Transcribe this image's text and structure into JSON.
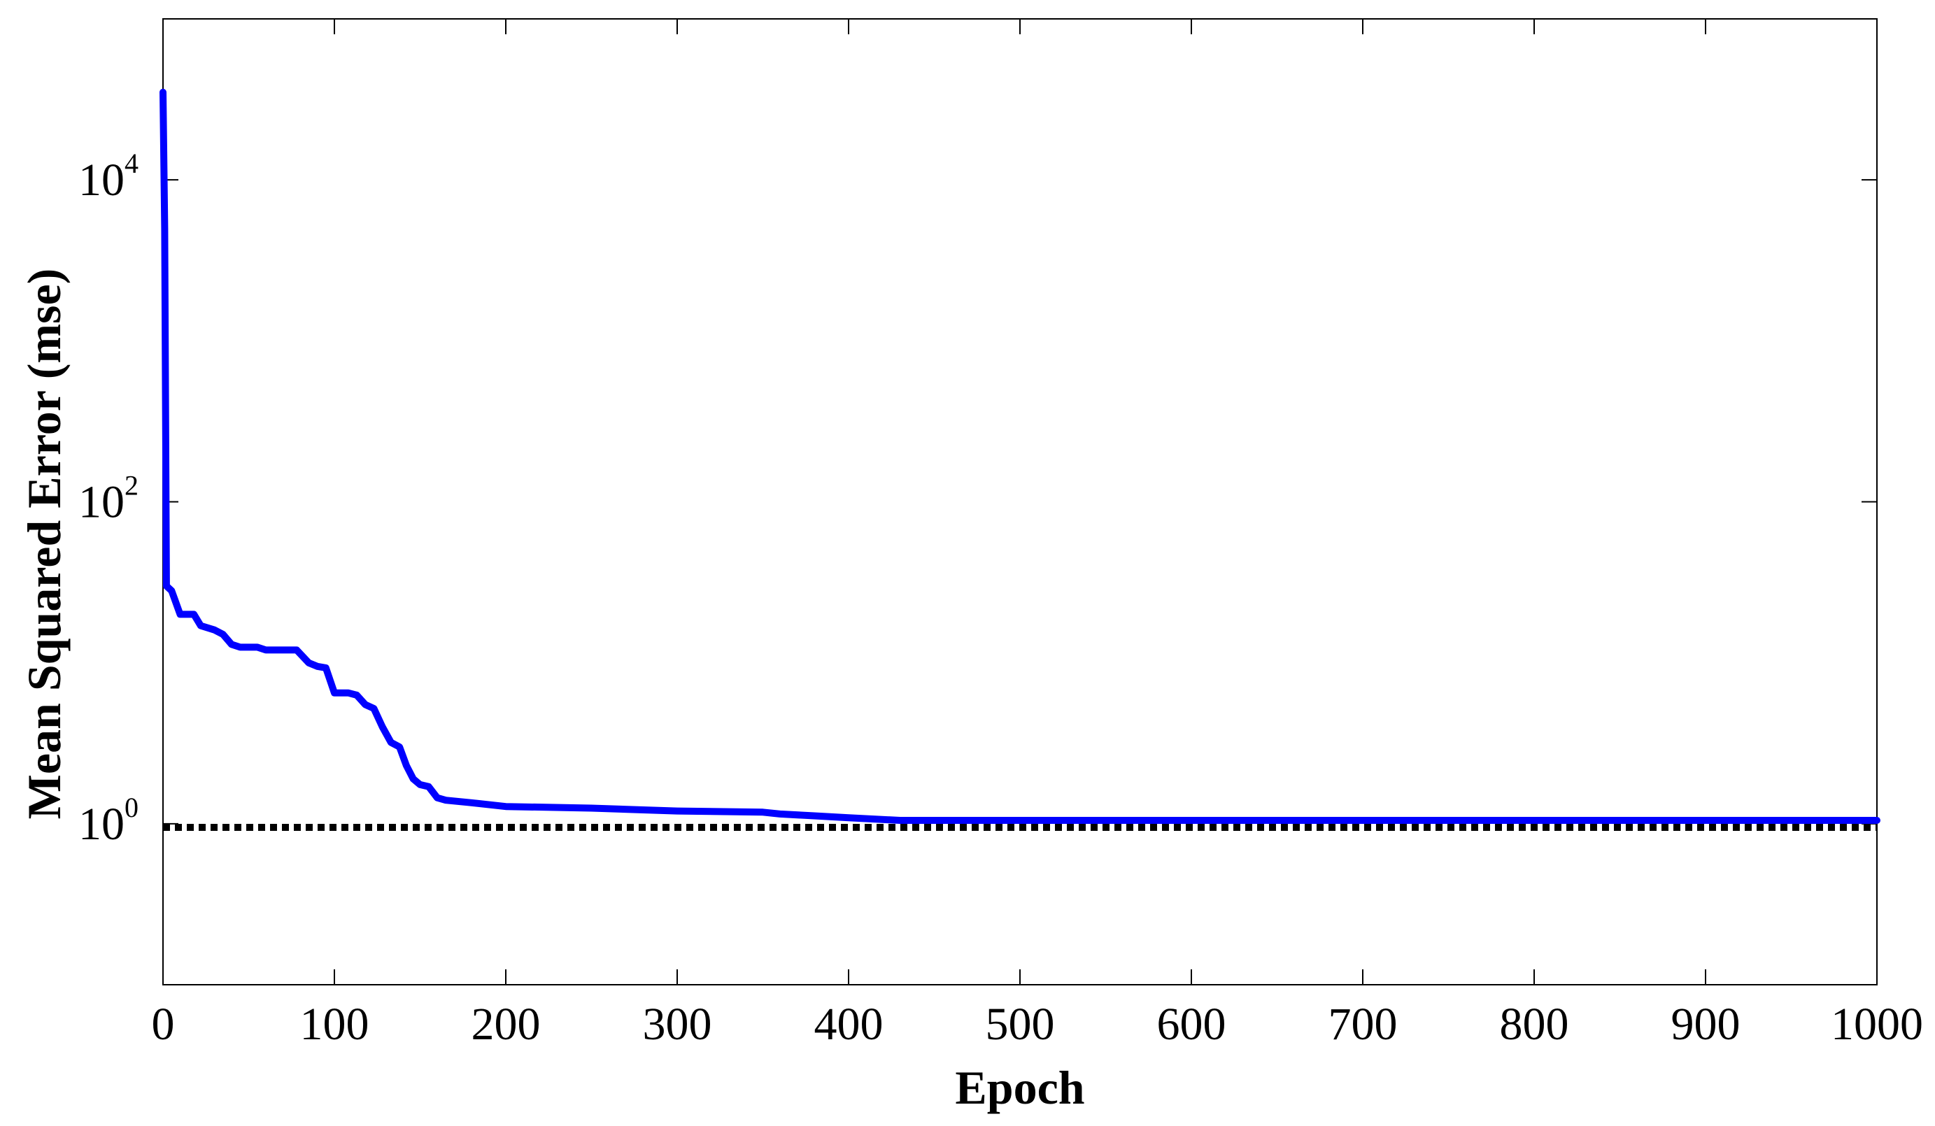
{
  "chart_data": {
    "type": "line",
    "title": "",
    "xlabel": "Epoch",
    "ylabel": "Mean Squared Error  (mse)",
    "xlim": [
      0,
      1000
    ],
    "ylim": [
      0.1,
      100000
    ],
    "yscale": "log",
    "x_ticks": [
      0,
      100,
      200,
      300,
      400,
      500,
      600,
      700,
      800,
      900,
      1000
    ],
    "y_ticks": [
      {
        "value": 1,
        "base": "10",
        "exp": "0"
      },
      {
        "value": 100,
        "base": "10",
        "exp": "2"
      },
      {
        "value": 10000,
        "base": "10",
        "exp": "4"
      }
    ],
    "grid": false,
    "legend": "none",
    "series": [
      {
        "style": "solid",
        "color": "#0000ff",
        "points": [
          [
            0,
            35000
          ],
          [
            1,
            5000
          ],
          [
            2,
            30
          ],
          [
            5,
            28
          ],
          [
            10,
            20
          ],
          [
            18,
            20
          ],
          [
            22,
            17
          ],
          [
            30,
            16
          ],
          [
            35,
            15
          ],
          [
            40,
            13
          ],
          [
            45,
            12.5
          ],
          [
            55,
            12.5
          ],
          [
            60,
            12
          ],
          [
            78,
            12
          ],
          [
            85,
            10
          ],
          [
            90,
            9.5
          ],
          [
            95,
            9.3
          ],
          [
            100,
            6.5
          ],
          [
            108,
            6.5
          ],
          [
            113,
            6.3
          ],
          [
            118,
            5.5
          ],
          [
            123,
            5.2
          ],
          [
            128,
            4
          ],
          [
            133,
            3.2
          ],
          [
            138,
            3.0
          ],
          [
            142,
            2.3
          ],
          [
            146,
            1.9
          ],
          [
            150,
            1.75
          ],
          [
            155,
            1.7
          ],
          [
            160,
            1.45
          ],
          [
            165,
            1.4
          ],
          [
            180,
            1.35
          ],
          [
            200,
            1.28
          ],
          [
            250,
            1.25
          ],
          [
            300,
            1.2
          ],
          [
            350,
            1.18
          ],
          [
            360,
            1.15
          ],
          [
            380,
            1.12
          ],
          [
            400,
            1.09
          ],
          [
            430,
            1.05
          ],
          [
            500,
            1.05
          ],
          [
            1000,
            1.05
          ]
        ]
      },
      {
        "style": "dotted",
        "color": "#000000",
        "points": [
          [
            0,
            0.95
          ],
          [
            1000,
            0.95
          ]
        ]
      }
    ]
  }
}
